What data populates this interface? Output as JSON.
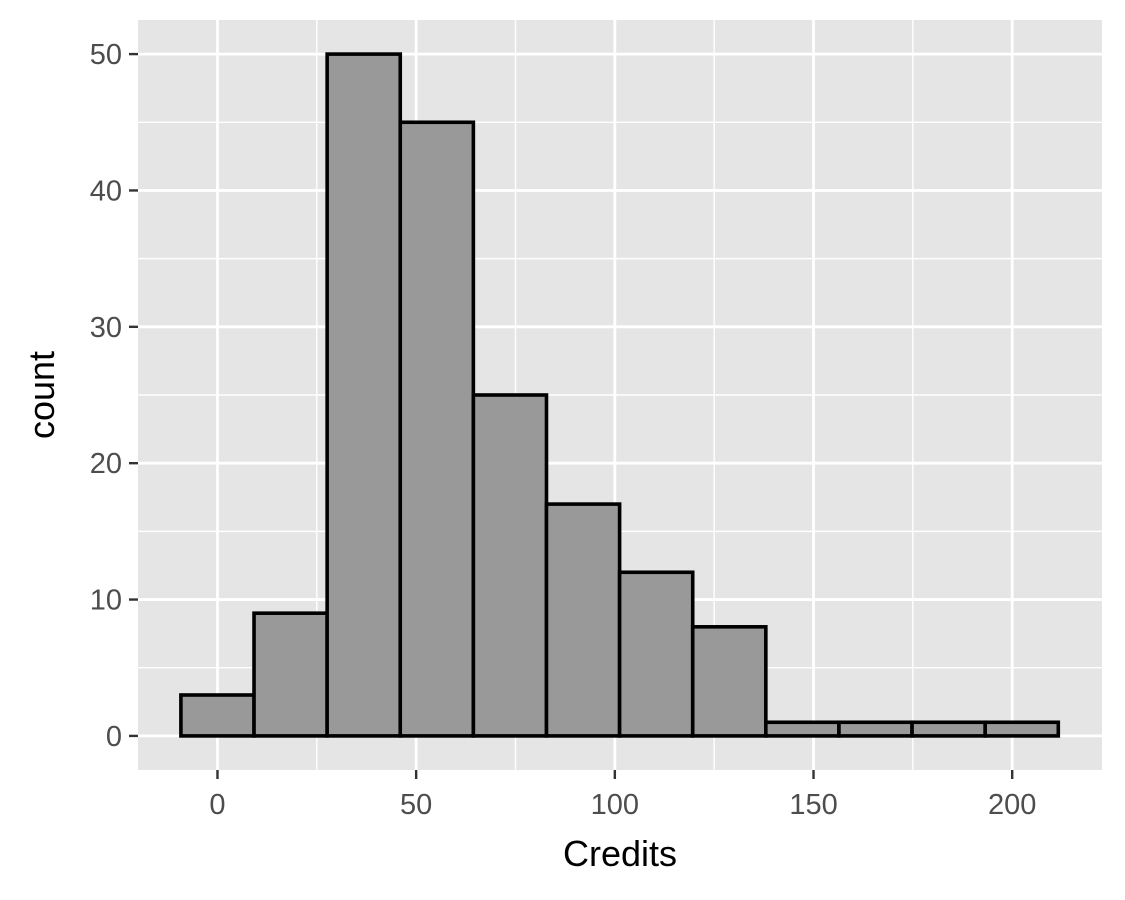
{
  "chart_data": {
    "type": "bar",
    "title": "",
    "xlabel": "Credits",
    "ylabel": "count",
    "bins": [
      {
        "x0": -9.2,
        "x1": 9.2,
        "count": 3
      },
      {
        "x0": 9.2,
        "x1": 27.6,
        "count": 9
      },
      {
        "x0": 27.6,
        "x1": 46.0,
        "count": 50
      },
      {
        "x0": 46.0,
        "x1": 64.4,
        "count": 45
      },
      {
        "x0": 64.4,
        "x1": 82.8,
        "count": 25
      },
      {
        "x0": 82.8,
        "x1": 101.2,
        "count": 17
      },
      {
        "x0": 101.2,
        "x1": 119.6,
        "count": 12
      },
      {
        "x0": 119.6,
        "x1": 138.0,
        "count": 8
      },
      {
        "x0": 138.0,
        "x1": 156.4,
        "count": 1
      },
      {
        "x0": 156.4,
        "x1": 174.8,
        "count": 1
      },
      {
        "x0": 174.8,
        "x1": 193.2,
        "count": 1
      },
      {
        "x0": 193.2,
        "x1": 211.6,
        "count": 1
      }
    ],
    "xlim": [
      -20.0,
      222.6
    ],
    "ylim": [
      -2.5,
      52.5
    ],
    "x_ticks": [
      0,
      50,
      100,
      150,
      200
    ],
    "x_tick_labels": [
      "0",
      "50",
      "100",
      "150",
      "200"
    ],
    "y_ticks": [
      0,
      10,
      20,
      30,
      40,
      50
    ],
    "y_tick_labels": [
      "0",
      "10",
      "20",
      "30",
      "40",
      "50"
    ],
    "grid": true,
    "legend": "none",
    "colors": {
      "panel_background": "#e5e5e5",
      "grid_line": "#ffffff",
      "bar_fill": "#999999",
      "bar_outline": "#000000",
      "tick_label": "#4d4d4d",
      "tick_mark": "#333333",
      "axis_title": "#000000"
    }
  }
}
